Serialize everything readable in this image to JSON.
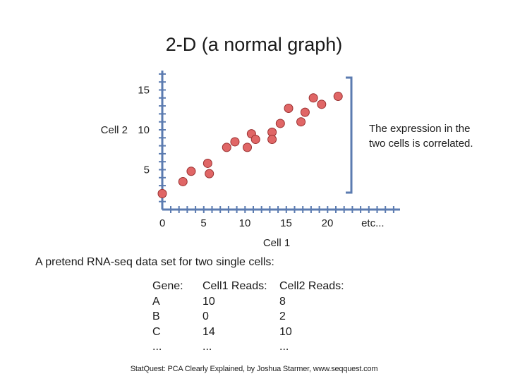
{
  "title": "2-D (a normal graph)",
  "chart_data": {
    "type": "scatter",
    "xlabel": "Cell 1",
    "ylabel": "Cell 2",
    "x_ticks": [
      "0",
      "5",
      "10",
      "15",
      "20",
      "etc..."
    ],
    "y_ticks": [
      "5",
      "10",
      "15"
    ],
    "xlim": [
      0,
      25
    ],
    "ylim": [
      0,
      16
    ],
    "points": [
      {
        "x": 0,
        "y": 2
      },
      {
        "x": 2.5,
        "y": 3.5
      },
      {
        "x": 3.5,
        "y": 4.8
      },
      {
        "x": 5.5,
        "y": 5.8
      },
      {
        "x": 5.7,
        "y": 4.5
      },
      {
        "x": 7.8,
        "y": 7.8
      },
      {
        "x": 8.8,
        "y": 8.5
      },
      {
        "x": 10.3,
        "y": 7.8
      },
      {
        "x": 10.8,
        "y": 9.5
      },
      {
        "x": 11.3,
        "y": 8.8
      },
      {
        "x": 13.3,
        "y": 9.7
      },
      {
        "x": 13.3,
        "y": 8.8
      },
      {
        "x": 14.3,
        "y": 10.8
      },
      {
        "x": 15.3,
        "y": 12.7
      },
      {
        "x": 16.8,
        "y": 11
      },
      {
        "x": 17.3,
        "y": 12.2
      },
      {
        "x": 18.3,
        "y": 14
      },
      {
        "x": 19.3,
        "y": 13.2
      },
      {
        "x": 21.3,
        "y": 14.2
      }
    ]
  },
  "annotation": "The expression in the two cells is correlated.",
  "subtitle": "A pretend RNA-seq data set for two single cells:",
  "table": {
    "headers": [
      "Gene:",
      "Cell1 Reads:",
      "Cell2 Reads:"
    ],
    "rows": [
      [
        "A",
        "10",
        "8"
      ],
      [
        "B",
        "0",
        "2"
      ],
      [
        "C",
        "14",
        "10"
      ],
      [
        "...",
        "...",
        "..."
      ]
    ]
  },
  "credit": "StatQuest: PCA Clearly Explained, by Joshua Starmer, www.seqquest.com",
  "colors": {
    "axis": "#5b7bb0",
    "point_fill": "#e06666",
    "point_stroke": "#9a3030",
    "bracket": "#5b7bb0"
  }
}
